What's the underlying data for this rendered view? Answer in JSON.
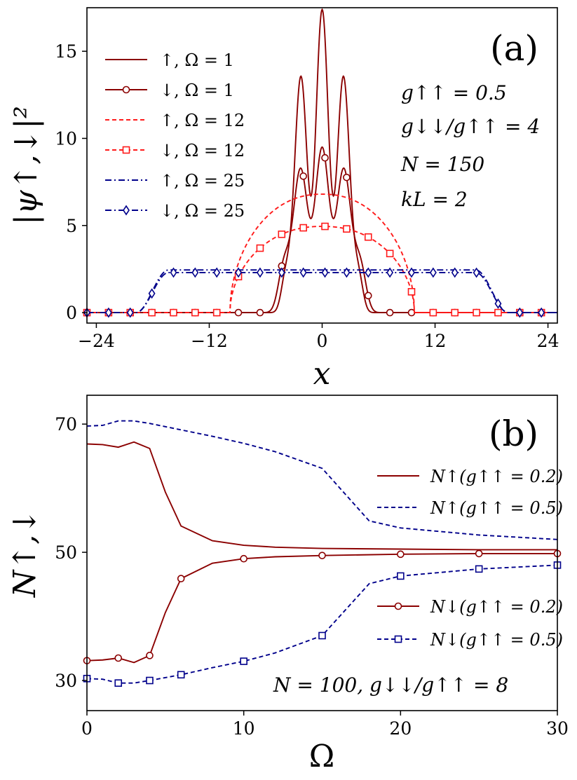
{
  "chart_data": [
    {
      "panel_label": "(a)",
      "type": "line",
      "xlabel": "x",
      "ylabel": "|ψ↑,↓|²",
      "xlim": [
        -25,
        25
      ],
      "ylim": [
        -0.6,
        17.5
      ],
      "xticks": [
        -24,
        -12,
        0,
        12,
        24
      ],
      "xtick_labels": [
        "−24",
        "−12",
        "0",
        "12",
        "24"
      ],
      "yticks": [
        0,
        5,
        10,
        15
      ],
      "ytick_labels": [
        "0",
        "5",
        "10",
        "15"
      ],
      "annotations": [
        "g↑↑ = 0.5",
        "g↓↓/g↑↑ = 4",
        "N = 150",
        "kL = 2"
      ],
      "series": [
        {
          "name": "↑, Ω = 1",
          "color": "#8b0000",
          "dash": "",
          "marker": "none",
          "profile": "osc",
          "amp": 10.7,
          "c": 6.7,
          "edge": 3.9,
          "w": 0.55
        },
        {
          "name": "↓, Ω = 1",
          "color": "#8b0000",
          "dash": "",
          "marker": "circle",
          "profile": "osc",
          "amp": 4.1,
          "c": 5.4,
          "edge": 4.4,
          "w": 0.55
        },
        {
          "name": "↑, Ω = 12",
          "color": "#ff1a1a",
          "dash": "6,4",
          "marker": "none",
          "profile": "tf",
          "h": 6.8,
          "R": 9.8,
          "p": 2.2
        },
        {
          "name": "↓, Ω = 12",
          "color": "#ff1a1a",
          "dash": "6,4",
          "marker": "square",
          "profile": "tf",
          "h": 4.95,
          "R": 9.8,
          "p": 2.2
        },
        {
          "name": "↑, Ω = 25",
          "color": "#00008b",
          "dash": "9,4,2,4",
          "marker": "none",
          "profile": "flat",
          "h": 2.45,
          "a": 16.3,
          "b": 18.6
        },
        {
          "name": "↓, Ω = 25",
          "color": "#00008b",
          "dash": "9,4,2,4",
          "marker": "diamond",
          "profile": "flat",
          "h": 2.3,
          "a": 16.3,
          "b": 18.6
        }
      ],
      "legend_position": "top-left"
    },
    {
      "panel_label": "(b)",
      "type": "line",
      "xlabel": "Ω",
      "ylabel": "N↑,↓",
      "xlim": [
        0,
        30
      ],
      "ylim": [
        25.3,
        74.5
      ],
      "xticks": [
        0,
        10,
        20,
        30
      ],
      "xtick_labels": [
        "0",
        "10",
        "20",
        "30"
      ],
      "yticks": [
        30,
        50,
        70
      ],
      "ytick_labels": [
        "30",
        "50",
        "70"
      ],
      "annotation": "N = 100, g↓↓/g↑↑ = 8",
      "legend_position": "right",
      "series": [
        {
          "name": "N↑(g↑↑ = 0.2)",
          "color": "#8b0000",
          "dash": "",
          "marker": "none",
          "x": [
            0,
            1,
            2,
            3,
            4,
            5,
            6,
            8,
            10,
            12,
            15,
            20,
            25,
            30
          ],
          "y": [
            66.9,
            66.8,
            66.4,
            67.2,
            66.2,
            59.4,
            54.1,
            51.8,
            51.1,
            50.8,
            50.6,
            50.5,
            50.4,
            50.4
          ]
        },
        {
          "name": "N↑(g↑↑ = 0.5)",
          "color": "#00008b",
          "dash": "6,4",
          "marker": "none",
          "x": [
            0,
            1,
            2,
            3,
            4,
            6,
            8,
            10,
            12,
            15,
            18,
            20,
            25,
            30
          ],
          "y": [
            69.7,
            69.8,
            70.5,
            70.5,
            70.1,
            69.1,
            68.1,
            67.0,
            65.7,
            63.1,
            54.9,
            53.8,
            52.7,
            52.0
          ]
        },
        {
          "name": "N↓(g↑↑ = 0.2)",
          "color": "#8b0000",
          "dash": "",
          "marker": "circle",
          "x": [
            0,
            1,
            2,
            3,
            4,
            5,
            6,
            8,
            10,
            12,
            15,
            20,
            25,
            30
          ],
          "y": [
            33.1,
            33.2,
            33.5,
            32.8,
            33.9,
            40.6,
            45.9,
            48.3,
            49.0,
            49.3,
            49.5,
            49.7,
            49.8,
            49.8
          ],
          "marker_x": [
            0,
            2,
            4,
            6,
            10,
            15,
            20,
            25,
            30
          ]
        },
        {
          "name": "N↓(g↑↑ = 0.5)",
          "color": "#00008b",
          "dash": "6,4",
          "marker": "square",
          "x": [
            0,
            1,
            2,
            3,
            4,
            6,
            8,
            10,
            12,
            15,
            18,
            20,
            25,
            30
          ],
          "y": [
            30.3,
            30.2,
            29.6,
            29.6,
            30.0,
            30.9,
            32.0,
            33.0,
            34.3,
            37.0,
            45.1,
            46.3,
            47.4,
            48.0
          ],
          "marker_x": [
            0,
            2,
            4,
            6,
            10,
            15,
            20,
            25,
            30
          ]
        }
      ]
    }
  ]
}
